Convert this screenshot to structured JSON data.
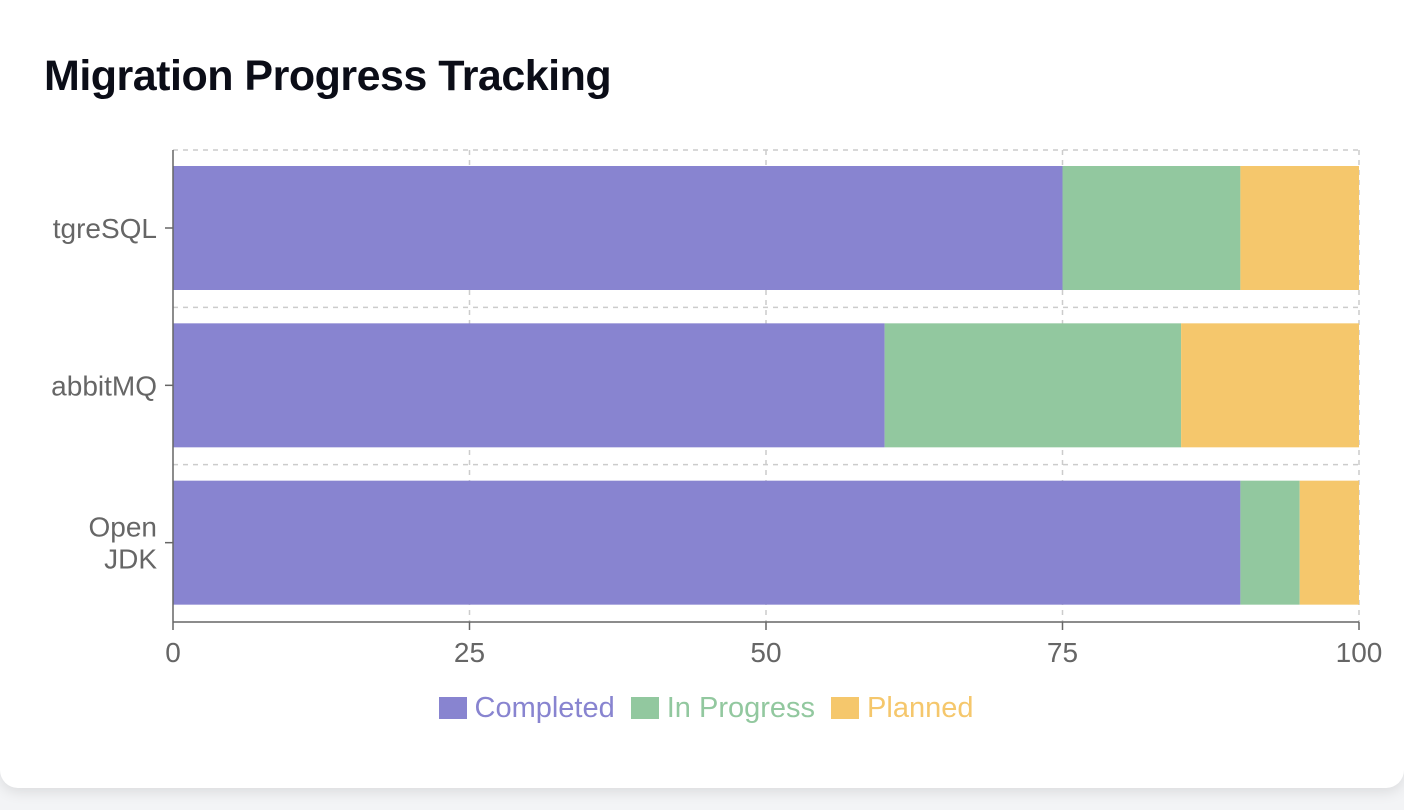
{
  "page": {
    "title": "Migration Progress Tracking"
  },
  "colors": {
    "completed": "#8884d0",
    "in_progress": "#92c89f",
    "planned": "#f5c76c",
    "grid": "#cccccc",
    "axis": "#666666"
  },
  "chart_data": {
    "type": "bar",
    "orientation": "horizontal",
    "stacked": true,
    "title": "Migration Progress Tracking",
    "categories": [
      "PostgreSQL",
      "RabbitMQ",
      "OpenJDK"
    ],
    "category_labels_visible": [
      [
        "tgreSQL"
      ],
      [
        "abbitMQ"
      ],
      [
        "Open",
        "JDK"
      ]
    ],
    "series": [
      {
        "name": "Completed",
        "values": [
          75,
          60,
          90
        ],
        "color": "#8884d0"
      },
      {
        "name": "In Progress",
        "values": [
          15,
          25,
          5
        ],
        "color": "#92c89f"
      },
      {
        "name": "Planned",
        "values": [
          10,
          15,
          5
        ],
        "color": "#f5c76c"
      }
    ],
    "xlim": [
      0,
      100
    ],
    "xticks": [
      0,
      25,
      50,
      75,
      100
    ],
    "grid": true,
    "legend_position": "bottom"
  }
}
